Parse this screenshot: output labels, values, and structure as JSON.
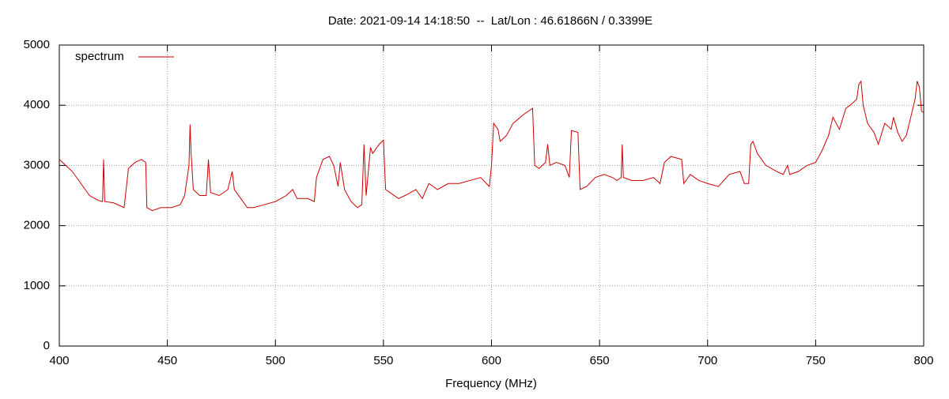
{
  "chart_data": {
    "type": "line",
    "title": "Date: 2021-09-14 14:18:50  --  Lat/Lon : 46.61866N / 0.3399E",
    "x_label": "Frequency (MHz)",
    "xlim": [
      400,
      800
    ],
    "xticks": [
      400,
      450,
      500,
      550,
      600,
      650,
      700,
      750,
      800
    ],
    "ylim": [
      0,
      5000
    ],
    "yticks": [
      0,
      1000,
      2000,
      3000,
      4000,
      5000
    ],
    "grid": true,
    "legend": "top-left",
    "x": [
      400,
      403,
      406,
      410,
      414,
      418,
      420,
      420.5,
      421,
      425,
      430,
      432,
      435,
      438,
      440,
      440.5,
      443,
      447,
      452,
      456,
      458,
      460,
      460.5,
      461,
      462,
      465,
      468,
      469,
      470,
      474,
      478,
      480,
      481,
      484,
      487,
      490,
      495,
      500,
      505,
      508,
      510,
      515,
      518,
      519,
      522,
      525,
      527,
      529,
      530,
      532,
      535,
      538,
      540,
      541,
      542,
      544,
      545,
      548,
      550,
      551,
      553,
      557,
      560,
      565,
      568,
      571,
      575,
      580,
      585,
      590,
      595,
      599,
      600,
      601,
      603,
      604,
      607,
      610,
      615,
      619,
      620,
      622,
      625,
      626,
      627,
      630,
      634,
      636,
      637,
      640,
      641,
      644,
      648,
      652,
      656,
      658,
      660,
      660.5,
      661,
      665,
      670,
      675,
      678,
      680,
      683,
      688,
      689,
      692,
      696,
      700,
      705,
      710,
      715,
      717,
      719,
      720,
      721,
      723,
      727,
      732,
      735,
      737,
      738,
      742,
      746,
      750,
      753,
      756,
      758,
      761,
      764,
      766,
      769,
      770,
      771,
      772,
      774,
      777,
      779,
      782,
      785,
      786,
      788,
      790,
      792,
      794,
      796,
      797,
      798,
      799,
      800
    ],
    "series": [
      {
        "name": "spectrum",
        "color": "#cc0000",
        "values": [
          3100,
          3000,
          2900,
          2700,
          2500,
          2420,
          2400,
          3100,
          2400,
          2380,
          2300,
          2950,
          3050,
          3100,
          3050,
          2300,
          2250,
          2300,
          2300,
          2350,
          2500,
          3000,
          3680,
          3200,
          2600,
          2500,
          2500,
          3100,
          2550,
          2500,
          2600,
          2900,
          2600,
          2450,
          2300,
          2300,
          2350,
          2400,
          2500,
          2600,
          2450,
          2450,
          2400,
          2800,
          3100,
          3150,
          3000,
          2650,
          3050,
          2600,
          2400,
          2300,
          2350,
          3350,
          2500,
          3300,
          3200,
          3350,
          3420,
          2600,
          2550,
          2450,
          2500,
          2600,
          2450,
          2700,
          2600,
          2700,
          2700,
          2750,
          2800,
          2650,
          3000,
          3700,
          3600,
          3400,
          3500,
          3700,
          3850,
          3950,
          3000,
          2950,
          3050,
          3350,
          3000,
          3050,
          3000,
          2800,
          3580,
          3550,
          2600,
          2650,
          2800,
          2850,
          2800,
          2750,
          2800,
          3350,
          2800,
          2750,
          2750,
          2800,
          2700,
          3050,
          3150,
          3100,
          2700,
          2850,
          2750,
          2700,
          2650,
          2850,
          2900,
          2700,
          2700,
          3350,
          3400,
          3200,
          3000,
          2900,
          2850,
          3000,
          2850,
          2900,
          3000,
          3050,
          3250,
          3500,
          3800,
          3600,
          3950,
          4000,
          4100,
          4350,
          4400,
          4000,
          3700,
          3550,
          3350,
          3700,
          3600,
          3800,
          3550,
          3400,
          3500,
          3800,
          4100,
          4400,
          4300,
          3900,
          3880
        ]
      }
    ]
  }
}
